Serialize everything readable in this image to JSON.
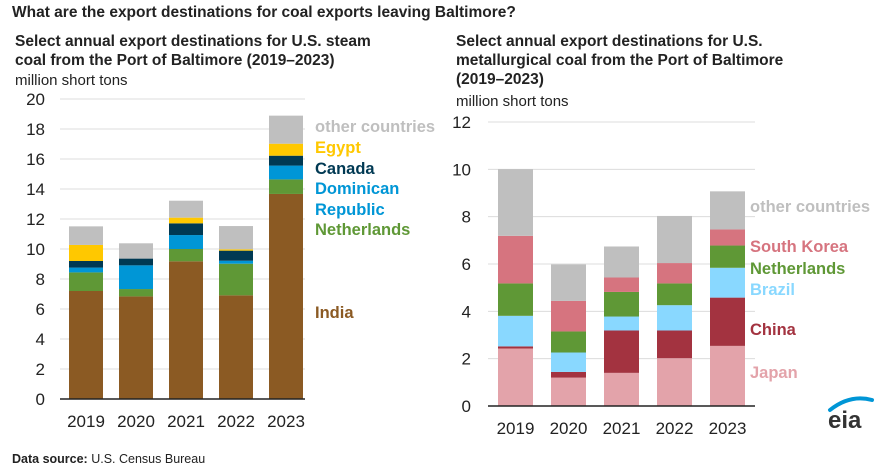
{
  "title": "What are the export destinations for coal exports leaving Baltimore?",
  "source_label": "Data source:",
  "source_value": "U.S. Census Bureau",
  "logo_text": "eia",
  "chart_data": [
    {
      "type": "bar",
      "stacked": true,
      "title_lines": [
        "Select annual export destinations for U.S. steam",
        "coal from the Port of Baltimore (2019–2023)"
      ],
      "ylabel": "million short tons",
      "ylim": [
        0,
        20
      ],
      "yticks": [
        0,
        2,
        4,
        6,
        8,
        10,
        12,
        14,
        16,
        18,
        20
      ],
      "grid": true,
      "categories": [
        "2019",
        "2020",
        "2021",
        "2022",
        "2023"
      ],
      "series": [
        {
          "name": "India",
          "label_lines": [
            "India"
          ],
          "color": "#8B5A23",
          "values": [
            7.2,
            6.84,
            9.18,
            6.91,
            13.67
          ]
        },
        {
          "name": "Netherlands",
          "label_lines": [
            "Netherlands"
          ],
          "color": "#5F9836",
          "values": [
            1.24,
            0.49,
            0.82,
            2.11,
            0.97
          ]
        },
        {
          "name": "Dominican Republic",
          "label_lines": [
            "Dominican",
            "Republic"
          ],
          "color": "#0096D6",
          "values": [
            0.32,
            1.58,
            0.93,
            0.2,
            0.92
          ]
        },
        {
          "name": "Canada",
          "label_lines": [
            "Canada"
          ],
          "color": "#003953",
          "values": [
            0.44,
            0.45,
            0.78,
            0.67,
            0.66
          ]
        },
        {
          "name": "Egypt",
          "label_lines": [
            "Egypt"
          ],
          "color": "#FFC800",
          "values": [
            1.07,
            0,
            0.38,
            0.09,
            0.8
          ]
        },
        {
          "name": "other countries",
          "label_lines": [
            "other countries"
          ],
          "color": "#BFBFBF",
          "values": [
            1.24,
            1.02,
            1.13,
            1.55,
            1.87
          ]
        }
      ]
    },
    {
      "type": "bar",
      "stacked": true,
      "title_lines": [
        "Select annual export destinations for U.S.",
        "metallurgical coal from the Port of Baltimore",
        "(2019–2023)"
      ],
      "ylabel": "million short tons",
      "ylim": [
        0,
        12
      ],
      "yticks": [
        0,
        2,
        4,
        6,
        8,
        10,
        12
      ],
      "grid": true,
      "categories": [
        "2019",
        "2020",
        "2021",
        "2022",
        "2023"
      ],
      "series": [
        {
          "name": "Japan",
          "label_lines": [
            "Japan"
          ],
          "color": "#E3A3AA",
          "values": [
            2.43,
            1.2,
            1.4,
            2.02,
            2.54
          ]
        },
        {
          "name": "China",
          "label_lines": [
            "China"
          ],
          "color": "#A33340",
          "values": [
            0.09,
            0.24,
            1.79,
            1.17,
            2.04
          ]
        },
        {
          "name": "Brazil",
          "label_lines": [
            "Brazil"
          ],
          "color": "#89D8FF",
          "values": [
            1.29,
            0.82,
            0.59,
            1.07,
            1.26
          ]
        },
        {
          "name": "Netherlands",
          "label_lines": [
            "Netherlands"
          ],
          "color": "#5F9836",
          "values": [
            1.37,
            0.89,
            1.04,
            0.92,
            0.94
          ]
        },
        {
          "name": "South Korea",
          "label_lines": [
            "South Korea"
          ],
          "color": "#D6747F",
          "values": [
            2.01,
            1.29,
            0.61,
            0.86,
            0.68
          ]
        },
        {
          "name": "other countries",
          "label_lines": [
            "other countries"
          ],
          "color": "#BFBFBF",
          "values": [
            2.82,
            1.54,
            1.31,
            1.99,
            1.61
          ]
        }
      ]
    }
  ]
}
